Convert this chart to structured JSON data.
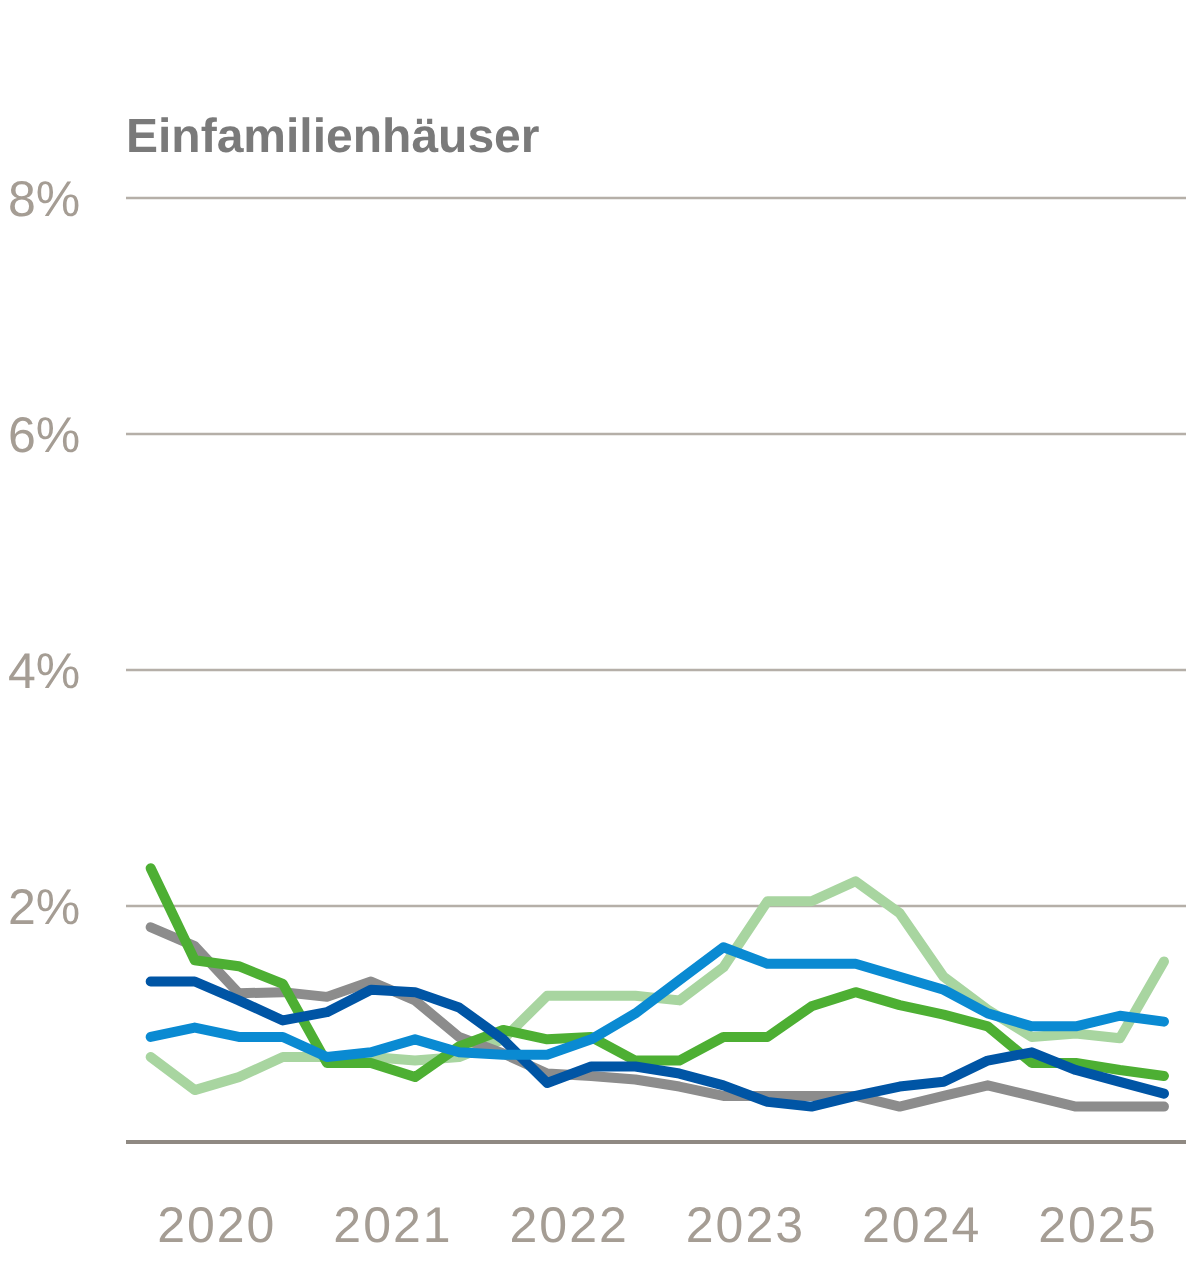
{
  "chart_data": {
    "type": "line",
    "title": "Einfamilienhäuser",
    "x": [
      2020,
      2020.25,
      2020.5,
      2020.75,
      2021,
      2021.25,
      2021.5,
      2021.75,
      2022,
      2022.25,
      2022.5,
      2022.75,
      2023,
      2023.25,
      2023.5,
      2023.75,
      2024,
      2024.25,
      2024.5,
      2024.75,
      2025,
      2025.25,
      2025.5,
      2025.75
    ],
    "xlim": [
      2019.86,
      2025.875
    ],
    "xticks": [
      {
        "value": 2020.375,
        "label": "2020"
      },
      {
        "value": 2021.375,
        "label": "2021"
      },
      {
        "value": 2022.375,
        "label": "2022"
      },
      {
        "value": 2023.375,
        "label": "2023"
      },
      {
        "value": 2024.375,
        "label": "2024"
      },
      {
        "value": 2025.375,
        "label": "2025"
      }
    ],
    "ylim": [
      0,
      8
    ],
    "yticks": [
      {
        "value": 0,
        "label": null
      },
      {
        "value": 2,
        "label": "2%"
      },
      {
        "value": 4,
        "label": "4%"
      },
      {
        "value": 6,
        "label": "6%"
      },
      {
        "value": 8,
        "label": "8%"
      }
    ],
    "grid": "y",
    "marker": "none",
    "line_style": "solid",
    "series": [
      {
        "color": "#a8d5a0",
        "values": [
          0.72,
          0.44,
          0.55,
          0.72,
          0.72,
          0.72,
          0.69,
          0.72,
          0.87,
          1.24,
          1.24,
          1.24,
          1.2,
          1.48,
          2.04,
          2.04,
          2.21,
          1.94,
          1.4,
          1.12,
          0.89,
          0.92,
          0.88,
          1.53
        ]
      },
      {
        "color": "#8c8c8c",
        "values": [
          1.82,
          1.66,
          1.26,
          1.27,
          1.23,
          1.36,
          1.2,
          0.89,
          0.75,
          0.58,
          0.56,
          0.53,
          0.47,
          0.39,
          0.39,
          0.39,
          0.39,
          0.3,
          0.39,
          0.48,
          0.39,
          0.3,
          0.3,
          0.3
        ]
      },
      {
        "color": "#4daf33",
        "values": [
          2.32,
          1.54,
          1.49,
          1.34,
          0.67,
          0.67,
          0.55,
          0.81,
          0.95,
          0.87,
          0.89,
          0.69,
          0.69,
          0.89,
          0.89,
          1.15,
          1.27,
          1.16,
          1.08,
          0.98,
          0.67,
          0.67,
          0.61,
          0.56
        ]
      },
      {
        "color": "#0055a5",
        "values": [
          1.36,
          1.36,
          1.2,
          1.03,
          1.1,
          1.29,
          1.27,
          1.14,
          0.87,
          0.5,
          0.64,
          0.64,
          0.58,
          0.48,
          0.34,
          0.3,
          0.39,
          0.47,
          0.51,
          0.69,
          0.76,
          0.61,
          0.51,
          0.41
        ]
      },
      {
        "color": "#0a8ad2",
        "values": [
          0.89,
          0.97,
          0.89,
          0.89,
          0.72,
          0.76,
          0.87,
          0.76,
          0.74,
          0.74,
          0.87,
          1.09,
          1.37,
          1.65,
          1.51,
          1.51,
          1.51,
          1.4,
          1.29,
          1.09,
          0.98,
          0.98,
          1.07,
          1.02
        ]
      }
    ]
  }
}
